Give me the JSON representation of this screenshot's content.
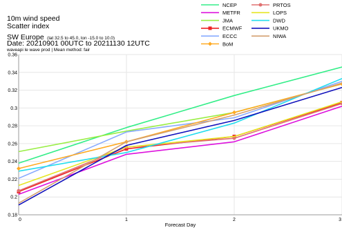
{
  "header": {
    "line1": "10m wind speed",
    "line2": "Scatter index",
    "region": "SW Europe",
    "latlon": "(lat  32.5 to 45.0, lon  -15.0 to 10.0)",
    "date": "Date: 20210901 00UTC to 20211130 12UTC",
    "subtitle": "waveapi le wave prod | Mean method: fair"
  },
  "chart_data": {
    "type": "line",
    "title": "",
    "xlabel": "Forecast Day",
    "ylabel": "",
    "xlim": [
      0,
      3
    ],
    "ylim": [
      0.18,
      0.36
    ],
    "x_ticks": [
      "0",
      "1",
      "2",
      "3"
    ],
    "y_ticks": [
      "0.18",
      "0.2",
      "0.22",
      "0.24",
      "0.26",
      "0.28",
      "0.3",
      "0.32",
      "0.34",
      "0.36"
    ],
    "grid": true,
    "legend_position": "top-right",
    "x": [
      0,
      1,
      2,
      3
    ],
    "series": [
      {
        "name": "NCEP",
        "color": "#33ee88",
        "marker": "none",
        "values": [
          0.238,
          0.278,
          0.314,
          0.346
        ]
      },
      {
        "name": "METFR",
        "color": "#dd11dd",
        "marker": "none",
        "values": [
          0.203,
          0.248,
          0.262,
          0.302
        ]
      },
      {
        "name": "JMA",
        "color": "#99ee44",
        "marker": "none",
        "values": [
          0.251,
          0.274,
          0.295,
          0.327
        ]
      },
      {
        "name": "ECMWF",
        "color": "#ee2222",
        "marker": "square",
        "values": [
          0.206,
          0.254,
          0.268,
          0.306
        ]
      },
      {
        "name": "ECCC",
        "color": "#88aaff",
        "marker": "none",
        "values": [
          0.221,
          0.273,
          0.289,
          0.33
        ]
      },
      {
        "name": "BoM",
        "color": "#ffaa22",
        "marker": "diamond",
        "values": [
          0.232,
          0.262,
          0.295,
          0.327
        ]
      },
      {
        "name": "PRTOS",
        "color": "#e07070",
        "marker": "circle",
        "values": [
          0.207,
          0.256,
          0.266,
          0.305
        ]
      },
      {
        "name": "LOPS",
        "color": "#e6e622",
        "marker": "none",
        "values": [
          0.213,
          0.256,
          0.268,
          0.307
        ]
      },
      {
        "name": "DWD",
        "color": "#22ddee",
        "marker": "none",
        "values": [
          0.229,
          0.25,
          0.283,
          0.333
        ]
      },
      {
        "name": "UKMO",
        "color": "#1111bb",
        "marker": "none",
        "values": [
          0.191,
          0.258,
          0.286,
          0.323
        ]
      },
      {
        "name": "NIWA",
        "color": "#d4a070",
        "marker": "none",
        "values": [
          0.193,
          0.262,
          0.292,
          0.328
        ]
      }
    ]
  }
}
